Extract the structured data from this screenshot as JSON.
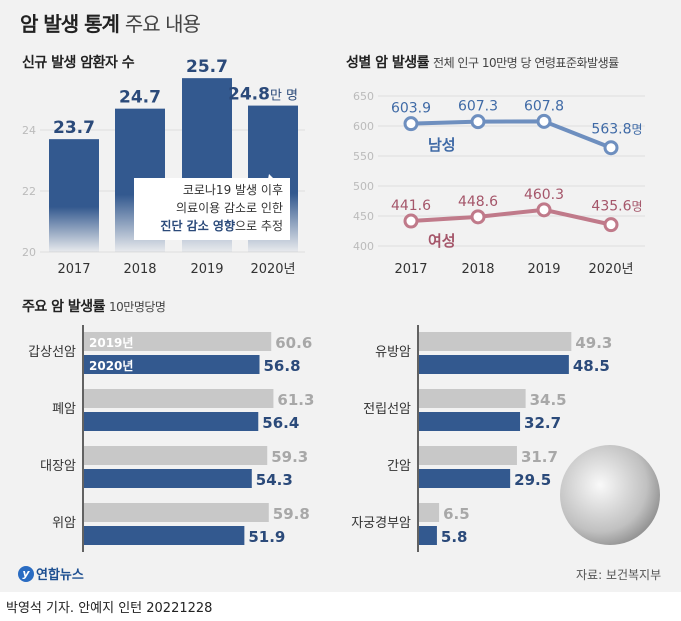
{
  "title": {
    "bold": "암 발생 통계",
    "light": "주요 내용"
  },
  "footer": {
    "logo": "연합뉴스",
    "source": "자료: 보건복지부",
    "credit": "박영석 기자. 안예지 인턴  20221228"
  },
  "annotation": {
    "line1": "코로나19 발생 이후",
    "line2": "의료이용 감소로 인한",
    "line3_bold": "진단 감소 영향",
    "line3_rest": "으로 추정"
  },
  "colors": {
    "navy": "#33598f",
    "male": "#6e8fbf",
    "female": "#c07a8a",
    "gray": "#c8c8c8",
    "gray_text": "#a8a8a8",
    "bg": "#f2f2f2"
  },
  "chart_data": [
    {
      "type": "bar",
      "title": "신규 발생 암환자 수",
      "categories": [
        "2017",
        "2018",
        "2019",
        "2020년"
      ],
      "values": [
        23.7,
        24.7,
        25.7,
        24.8
      ],
      "value_labels": [
        "23.7",
        "24.7",
        "25.7",
        "24.8"
      ],
      "unit": "만 명",
      "ylim": [
        20,
        26
      ],
      "yticks": [
        20,
        22,
        24
      ],
      "grid": true
    },
    {
      "type": "line",
      "title": "성별 암 발생률",
      "subtitle": "전체 인구 10만명 당 연령표준화발생률",
      "categories": [
        "2017",
        "2018",
        "2019",
        "2020년"
      ],
      "ylim": [
        400,
        650
      ],
      "yticks": [
        400,
        450,
        500,
        550,
        600,
        650
      ],
      "grid": true,
      "unit": "명",
      "series": [
        {
          "name": "남성",
          "values": [
            603.9,
            607.3,
            607.8,
            563.8
          ],
          "color": "#6e8fbf"
        },
        {
          "name": "여성",
          "values": [
            441.6,
            448.6,
            460.3,
            435.6
          ],
          "color": "#c07a8a"
        }
      ]
    },
    {
      "type": "bar",
      "orientation": "horizontal",
      "title": "주요 암 발생률",
      "subtitle": "10만명당명",
      "categories": [
        "갑상선암",
        "폐암",
        "대장암",
        "위암",
        "유방암",
        "전립선암",
        "간암",
        "자궁경부암"
      ],
      "series": [
        {
          "name": "2019년",
          "values": [
            60.6,
            61.3,
            59.3,
            59.8,
            49.3,
            34.5,
            31.7,
            6.5
          ]
        },
        {
          "name": "2020년",
          "values": [
            56.8,
            56.4,
            54.3,
            51.9,
            48.5,
            32.7,
            29.5,
            5.8
          ]
        }
      ]
    }
  ]
}
